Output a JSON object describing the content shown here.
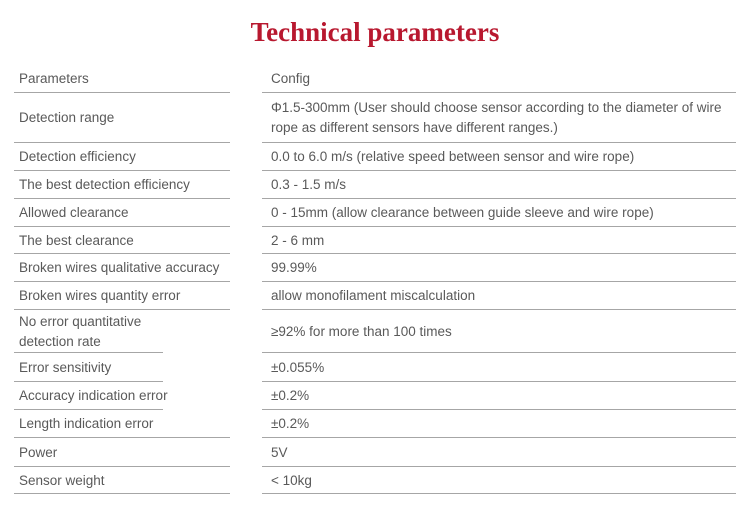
{
  "title": "Technical parameters",
  "colors": {
    "title_red": "#b8182f",
    "body_text": "#595959",
    "rule_gray": "#a6a6a6",
    "background": "#ffffff"
  },
  "table": {
    "header": {
      "param": "Parameters",
      "config": "Config"
    },
    "rows": [
      {
        "param": "Detection range",
        "config": "Φ1.5-300mm (User should choose sensor according to the diameter of wire rope as different sensors have different ranges.)"
      },
      {
        "param": "Detection efficiency",
        "config": "0.0 to 6.0 m/s (relative speed between sensor and wire rope)"
      },
      {
        "param": "The best detection efficiency",
        "config": "0.3 - 1.5 m/s"
      },
      {
        "param": "Allowed clearance",
        "config": "0 - 15mm (allow clearance between guide sleeve and wire rope)"
      },
      {
        "param": "The best clearance",
        "config": "2 - 6 mm"
      },
      {
        "param": "Broken wires qualitative accuracy",
        "config": "99.99%"
      },
      {
        "param": "Broken wires quantity error",
        "config": "allow monofilament miscalculation"
      },
      {
        "param": "No error quantitative detection rate",
        "config": "≥92% for more than 100 times"
      },
      {
        "param": "Error sensitivity",
        "config": "±0.055%"
      },
      {
        "param": "Accuracy indication error",
        "config": "±0.2%"
      },
      {
        "param": "Length indication error",
        "config": "±0.2%"
      },
      {
        "param": "Power",
        "config": "5V"
      },
      {
        "param": "Sensor weight",
        "config": "< 10kg"
      }
    ]
  }
}
